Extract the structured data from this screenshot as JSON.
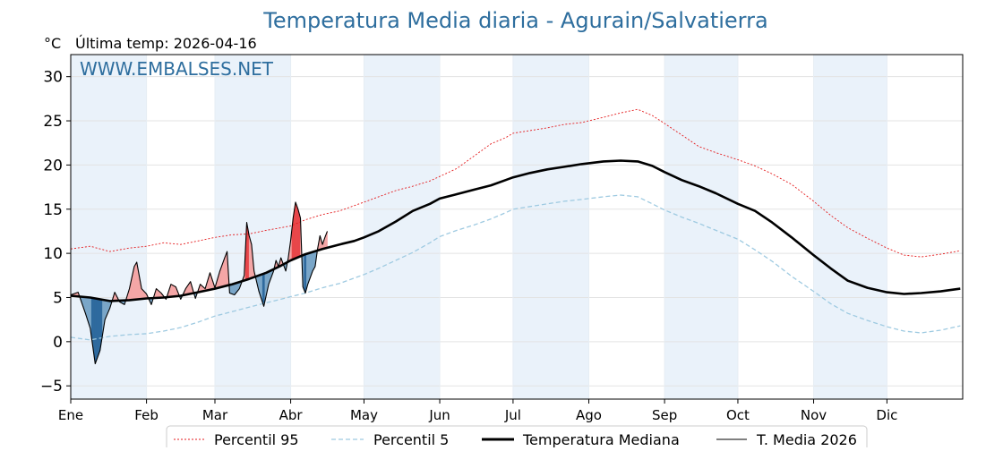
{
  "chart_data": {
    "type": "line",
    "title": "Temperatura Media diaria - Agurain/Salvatierra",
    "unit_label": "°C",
    "last_temp_label": "Última temp: 2026-04-16",
    "watermark": "WWW.EMBALSES.NET",
    "ylim": [
      -6.5,
      32.5
    ],
    "yticks": [
      -5,
      0,
      5,
      10,
      15,
      20,
      25,
      30
    ],
    "ytick_labels": [
      "−5",
      "0",
      "5",
      "10",
      "15",
      "20",
      "25",
      "30"
    ],
    "x_days": 365,
    "months": [
      "Ene",
      "Feb",
      "Mar",
      "Abr",
      "May",
      "Jun",
      "Jul",
      "Ago",
      "Sep",
      "Oct",
      "Nov",
      "Dic"
    ],
    "month_start_days": [
      0,
      31,
      59,
      90,
      120,
      151,
      181,
      212,
      243,
      273,
      304,
      334
    ],
    "grid": true,
    "legend_position": "bottom-center",
    "colors": {
      "p95": "#e41a1c",
      "p5": "#9ecae1",
      "median": "#000000",
      "current": "#000000",
      "above_fill": "#f4a6a6",
      "above_fill_strong": "#e8474a",
      "below_fill": "#7aa6c8",
      "below_fill_strong": "#2f6a9e",
      "title": "#2e6e9e",
      "month_band": "#eaf2fa"
    },
    "series": [
      {
        "name": "Percentil 95",
        "style": "dotted-red",
        "points": [
          [
            0,
            10.5
          ],
          [
            8,
            10.8
          ],
          [
            16,
            10.2
          ],
          [
            24,
            10.6
          ],
          [
            31,
            10.8
          ],
          [
            38,
            11.2
          ],
          [
            45,
            11.0
          ],
          [
            52,
            11.4
          ],
          [
            59,
            11.8
          ],
          [
            66,
            12.1
          ],
          [
            73,
            12.2
          ],
          [
            80,
            12.6
          ],
          [
            86,
            12.9
          ],
          [
            90,
            13.1
          ],
          [
            96,
            13.8
          ],
          [
            103,
            14.4
          ],
          [
            110,
            14.8
          ],
          [
            116,
            15.4
          ],
          [
            120,
            15.8
          ],
          [
            126,
            16.4
          ],
          [
            133,
            17.1
          ],
          [
            140,
            17.6
          ],
          [
            147,
            18.2
          ],
          [
            151,
            18.7
          ],
          [
            158,
            19.6
          ],
          [
            165,
            21.0
          ],
          [
            172,
            22.4
          ],
          [
            178,
            23.1
          ],
          [
            181,
            23.6
          ],
          [
            188,
            23.9
          ],
          [
            195,
            24.2
          ],
          [
            202,
            24.6
          ],
          [
            209,
            24.8
          ],
          [
            212,
            25.0
          ],
          [
            218,
            25.4
          ],
          [
            225,
            25.9
          ],
          [
            232,
            26.3
          ],
          [
            238,
            25.6
          ],
          [
            243,
            24.7
          ],
          [
            250,
            23.4
          ],
          [
            257,
            22.1
          ],
          [
            264,
            21.4
          ],
          [
            273,
            20.6
          ],
          [
            280,
            19.9
          ],
          [
            287,
            19.0
          ],
          [
            295,
            17.8
          ],
          [
            304,
            15.9
          ],
          [
            311,
            14.3
          ],
          [
            318,
            12.9
          ],
          [
            326,
            11.7
          ],
          [
            334,
            10.6
          ],
          [
            341,
            9.8
          ],
          [
            348,
            9.6
          ],
          [
            356,
            9.9
          ],
          [
            364,
            10.3
          ]
        ]
      },
      {
        "name": "Percentil 5",
        "style": "dashed-lightblue",
        "points": [
          [
            0,
            0.5
          ],
          [
            8,
            0.2
          ],
          [
            16,
            0.6
          ],
          [
            24,
            0.8
          ],
          [
            31,
            0.9
          ],
          [
            38,
            1.2
          ],
          [
            45,
            1.6
          ],
          [
            52,
            2.2
          ],
          [
            59,
            2.9
          ],
          [
            66,
            3.4
          ],
          [
            73,
            3.9
          ],
          [
            80,
            4.4
          ],
          [
            86,
            4.8
          ],
          [
            90,
            5.1
          ],
          [
            96,
            5.5
          ],
          [
            103,
            6.1
          ],
          [
            110,
            6.6
          ],
          [
            116,
            7.2
          ],
          [
            120,
            7.6
          ],
          [
            126,
            8.3
          ],
          [
            133,
            9.2
          ],
          [
            140,
            10.1
          ],
          [
            147,
            11.2
          ],
          [
            151,
            11.9
          ],
          [
            158,
            12.6
          ],
          [
            165,
            13.2
          ],
          [
            172,
            13.9
          ],
          [
            178,
            14.6
          ],
          [
            181,
            15.0
          ],
          [
            188,
            15.3
          ],
          [
            195,
            15.6
          ],
          [
            202,
            15.9
          ],
          [
            209,
            16.1
          ],
          [
            212,
            16.2
          ],
          [
            218,
            16.4
          ],
          [
            225,
            16.6
          ],
          [
            232,
            16.4
          ],
          [
            238,
            15.6
          ],
          [
            243,
            14.9
          ],
          [
            250,
            14.1
          ],
          [
            257,
            13.4
          ],
          [
            264,
            12.6
          ],
          [
            273,
            11.6
          ],
          [
            280,
            10.4
          ],
          [
            287,
            9.1
          ],
          [
            295,
            7.4
          ],
          [
            304,
            5.7
          ],
          [
            311,
            4.3
          ],
          [
            318,
            3.2
          ],
          [
            326,
            2.4
          ],
          [
            334,
            1.7
          ],
          [
            341,
            1.2
          ],
          [
            348,
            1.0
          ],
          [
            356,
            1.3
          ],
          [
            364,
            1.8
          ]
        ]
      },
      {
        "name": "Temperatura Mediana",
        "style": "thick-black",
        "points": [
          [
            0,
            5.2
          ],
          [
            8,
            5.0
          ],
          [
            16,
            4.6
          ],
          [
            24,
            4.7
          ],
          [
            31,
            4.9
          ],
          [
            38,
            5.0
          ],
          [
            45,
            5.2
          ],
          [
            52,
            5.6
          ],
          [
            59,
            6.0
          ],
          [
            66,
            6.5
          ],
          [
            73,
            7.1
          ],
          [
            80,
            7.8
          ],
          [
            86,
            8.6
          ],
          [
            90,
            9.2
          ],
          [
            96,
            9.9
          ],
          [
            103,
            10.5
          ],
          [
            110,
            11.0
          ],
          [
            116,
            11.4
          ],
          [
            120,
            11.8
          ],
          [
            126,
            12.5
          ],
          [
            133,
            13.6
          ],
          [
            140,
            14.8
          ],
          [
            147,
            15.6
          ],
          [
            151,
            16.2
          ],
          [
            158,
            16.7
          ],
          [
            165,
            17.2
          ],
          [
            172,
            17.7
          ],
          [
            178,
            18.3
          ],
          [
            181,
            18.6
          ],
          [
            188,
            19.1
          ],
          [
            195,
            19.5
          ],
          [
            202,
            19.8
          ],
          [
            209,
            20.1
          ],
          [
            212,
            20.2
          ],
          [
            218,
            20.4
          ],
          [
            225,
            20.5
          ],
          [
            232,
            20.4
          ],
          [
            238,
            19.9
          ],
          [
            243,
            19.2
          ],
          [
            250,
            18.3
          ],
          [
            257,
            17.6
          ],
          [
            264,
            16.8
          ],
          [
            273,
            15.6
          ],
          [
            280,
            14.8
          ],
          [
            287,
            13.5
          ],
          [
            295,
            11.8
          ],
          [
            304,
            9.8
          ],
          [
            311,
            8.3
          ],
          [
            318,
            6.9
          ],
          [
            326,
            6.1
          ],
          [
            334,
            5.6
          ],
          [
            341,
            5.4
          ],
          [
            348,
            5.5
          ],
          [
            356,
            5.7
          ],
          [
            364,
            6.0
          ]
        ]
      },
      {
        "name": "T. Media 2026",
        "style": "thin-black",
        "points": [
          [
            0,
            5.3
          ],
          [
            3,
            5.6
          ],
          [
            6,
            3.2
          ],
          [
            8,
            1.5
          ],
          [
            10,
            -2.5
          ],
          [
            12,
            -1.0
          ],
          [
            14,
            2.5
          ],
          [
            16,
            3.8
          ],
          [
            18,
            5.6
          ],
          [
            20,
            4.5
          ],
          [
            22,
            4.2
          ],
          [
            24,
            6.0
          ],
          [
            26,
            8.5
          ],
          [
            27,
            9.0
          ],
          [
            29,
            6.0
          ],
          [
            31,
            5.4
          ],
          [
            33,
            4.2
          ],
          [
            35,
            6.0
          ],
          [
            37,
            5.5
          ],
          [
            39,
            4.8
          ],
          [
            41,
            6.5
          ],
          [
            43,
            6.2
          ],
          [
            45,
            4.8
          ],
          [
            47,
            6.0
          ],
          [
            49,
            6.8
          ],
          [
            51,
            4.9
          ],
          [
            53,
            6.5
          ],
          [
            55,
            6.0
          ],
          [
            57,
            7.8
          ],
          [
            59,
            6.1
          ],
          [
            61,
            8.0
          ],
          [
            63,
            9.5
          ],
          [
            64,
            10.2
          ],
          [
            65,
            5.5
          ],
          [
            67,
            5.3
          ],
          [
            69,
            6.0
          ],
          [
            71,
            7.5
          ],
          [
            72,
            13.5
          ],
          [
            73,
            12.0
          ],
          [
            74,
            11.0
          ],
          [
            75,
            8.0
          ],
          [
            77,
            5.7
          ],
          [
            79,
            4.0
          ],
          [
            81,
            6.5
          ],
          [
            83,
            8.0
          ],
          [
            84,
            9.2
          ],
          [
            85,
            8.5
          ],
          [
            86,
            9.5
          ],
          [
            88,
            8.0
          ],
          [
            89,
            9.5
          ],
          [
            90,
            11.5
          ],
          [
            91,
            14.0
          ],
          [
            92,
            15.8
          ],
          [
            93,
            15.0
          ],
          [
            94,
            14.0
          ],
          [
            95,
            6.2
          ],
          [
            96,
            5.5
          ],
          [
            97,
            6.5
          ],
          [
            99,
            8.0
          ],
          [
            100,
            8.5
          ],
          [
            101,
            10.5
          ],
          [
            102,
            12.0
          ],
          [
            103,
            11.0
          ],
          [
            104,
            11.8
          ],
          [
            105,
            12.5
          ]
        ]
      }
    ]
  }
}
